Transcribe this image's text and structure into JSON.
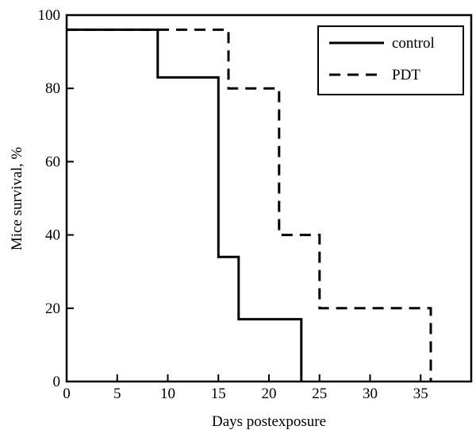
{
  "chart_data": {
    "type": "line",
    "step": true,
    "xlabel": "Days postexposure",
    "ylabel": "Mice survival, %",
    "xlim": [
      0,
      40
    ],
    "ylim": [
      0,
      100
    ],
    "xticks": [
      0,
      5,
      10,
      15,
      20,
      25,
      30,
      35
    ],
    "yticks": [
      0,
      20,
      40,
      60,
      80,
      100
    ],
    "grid": false,
    "legend_position": "top-right",
    "series": [
      {
        "name": "control",
        "style": "solid",
        "color": "#000000",
        "x": [
          0,
          9,
          9,
          15,
          15,
          17,
          17,
          23.2,
          23.2
        ],
        "y": [
          96,
          96,
          83,
          83,
          34,
          34,
          17,
          17,
          0
        ]
      },
      {
        "name": "PDT",
        "style": "dashed",
        "color": "#000000",
        "x": [
          0,
          16,
          16,
          21,
          21,
          25,
          25,
          36,
          36
        ],
        "y": [
          96,
          96,
          80,
          80,
          40,
          40,
          20,
          20,
          0
        ]
      }
    ]
  }
}
